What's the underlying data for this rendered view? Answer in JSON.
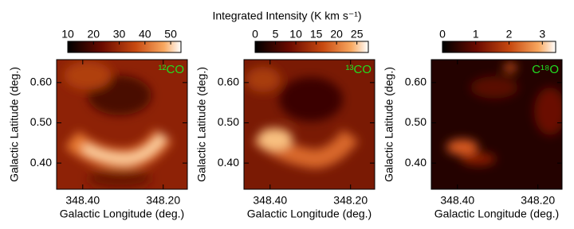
{
  "chart_data": [
    {
      "type": "heatmap",
      "title": "Integrated Intensity (K km s⁻¹)",
      "label": "¹²CO",
      "label_color": "#22dd22",
      "xlabel": "Galactic Longitude (deg.)",
      "ylabel": "Galactic Latitude (deg.)",
      "xlim": [
        348.465,
        348.14
      ],
      "xticks": [
        {
          "value": 348.4,
          "label": "348.40"
        },
        {
          "value": 348.2,
          "label": "348.20"
        }
      ],
      "ylim": [
        0.335,
        0.657
      ],
      "yticks": [
        {
          "value": 0.4,
          "label": "0.40"
        },
        {
          "value": 0.5,
          "label": "0.50"
        },
        {
          "value": 0.6,
          "label": "0.60"
        }
      ],
      "clim": [
        10,
        54
      ],
      "cticks": [
        10,
        20,
        30,
        40,
        50
      ]
    },
    {
      "type": "heatmap",
      "label": "¹³CO",
      "label_color": "#22dd22",
      "xlabel": "Galactic Longitude (deg.)",
      "ylabel": "Galactic Latitude (deg.)",
      "xlim": [
        348.465,
        348.14
      ],
      "xticks": [
        {
          "value": 348.4,
          "label": "348.40"
        },
        {
          "value": 348.2,
          "label": "348.20"
        }
      ],
      "ylim": [
        0.335,
        0.657
      ],
      "yticks": [
        {
          "value": 0.4,
          "label": "0.40"
        },
        {
          "value": 0.5,
          "label": "0.50"
        },
        {
          "value": 0.6,
          "label": "0.60"
        }
      ],
      "clim": [
        0,
        27.8
      ],
      "cticks": [
        0,
        5,
        10,
        15,
        20,
        25
      ]
    },
    {
      "type": "heatmap",
      "label": "C¹⁸O",
      "label_color": "#22dd22",
      "xlabel": "Galactic Longitude (deg.)",
      "ylabel": "Galactic Latitude (deg.)",
      "xlim": [
        348.465,
        348.14
      ],
      "xticks": [
        {
          "value": 348.4,
          "label": "348.40"
        },
        {
          "value": 348.2,
          "label": "348.20"
        }
      ],
      "ylim": [
        0.335,
        0.657
      ],
      "yticks": [
        {
          "value": 0.4,
          "label": "0.40"
        },
        {
          "value": 0.5,
          "label": "0.50"
        },
        {
          "value": 0.6,
          "label": "0.60"
        }
      ],
      "clim": [
        0,
        3.4
      ],
      "cticks": [
        0,
        1,
        2,
        3
      ]
    }
  ]
}
